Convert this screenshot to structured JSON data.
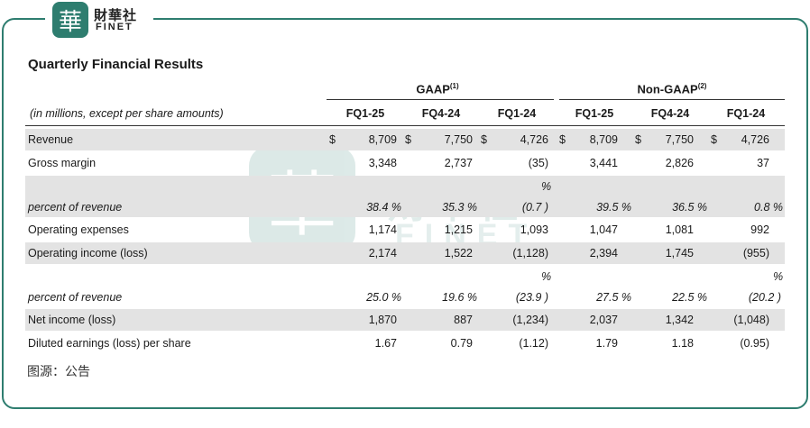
{
  "brand": {
    "seal_char": "華",
    "name_cn": "財華社",
    "name_en": "FINET"
  },
  "table": {
    "title": "Quarterly Financial Results",
    "subheader": "(in millions, except per share amounts)",
    "groups": [
      {
        "label": "GAAP",
        "note": "(1)"
      },
      {
        "label": "Non-GAAP",
        "note": "(2)"
      }
    ],
    "columns": [
      "FQ1-25",
      "FQ4-24",
      "FQ1-24",
      "FQ1-25",
      "FQ4-24",
      "FQ1-24"
    ],
    "rows": [
      {
        "label": "Revenue",
        "values": [
          "8,709",
          "7,750",
          "4,726",
          "8,709",
          "7,750",
          "4,726"
        ],
        "dollar": "$"
      },
      {
        "label": "Gross margin",
        "values": [
          "3,348",
          "2,737",
          "(35)",
          "3,441",
          "2,826",
          "37"
        ]
      },
      {
        "label": "percent of revenue",
        "values": [
          "38.4 %",
          "35.3 %",
          "(0.7 )",
          "39.5 %",
          "36.5 %",
          "0.8 %"
        ],
        "pct_sign": "%"
      },
      {
        "label": "Operating expenses",
        "values": [
          "1,174",
          "1,215",
          "1,093",
          "1,047",
          "1,081",
          "992"
        ]
      },
      {
        "label": "Operating income (loss)",
        "values": [
          "2,174",
          "1,522",
          "(1,128)",
          "2,394",
          "1,745",
          "(955)"
        ]
      },
      {
        "label": "percent of revenue",
        "values": [
          "25.0 %",
          "19.6 %",
          "(23.9 )",
          "27.5 %",
          "22.5 %",
          "(20.2 )"
        ],
        "pct_sign": "%"
      },
      {
        "label": "Net income (loss)",
        "values": [
          "1,870",
          "887",
          "(1,234)",
          "2,037",
          "1,342",
          "(1,048)"
        ]
      },
      {
        "label": "Diluted earnings (loss) per share",
        "values": [
          "1.67",
          "0.79",
          "(1.12)",
          "1.79",
          "1.18",
          "(0.95)"
        ]
      }
    ]
  },
  "watermark": {
    "cn": "財華社",
    "en": "FINET"
  },
  "source": "图源：公告",
  "colors": {
    "brand": "#2e7d6f",
    "row_shade": "#e3e3e3"
  }
}
